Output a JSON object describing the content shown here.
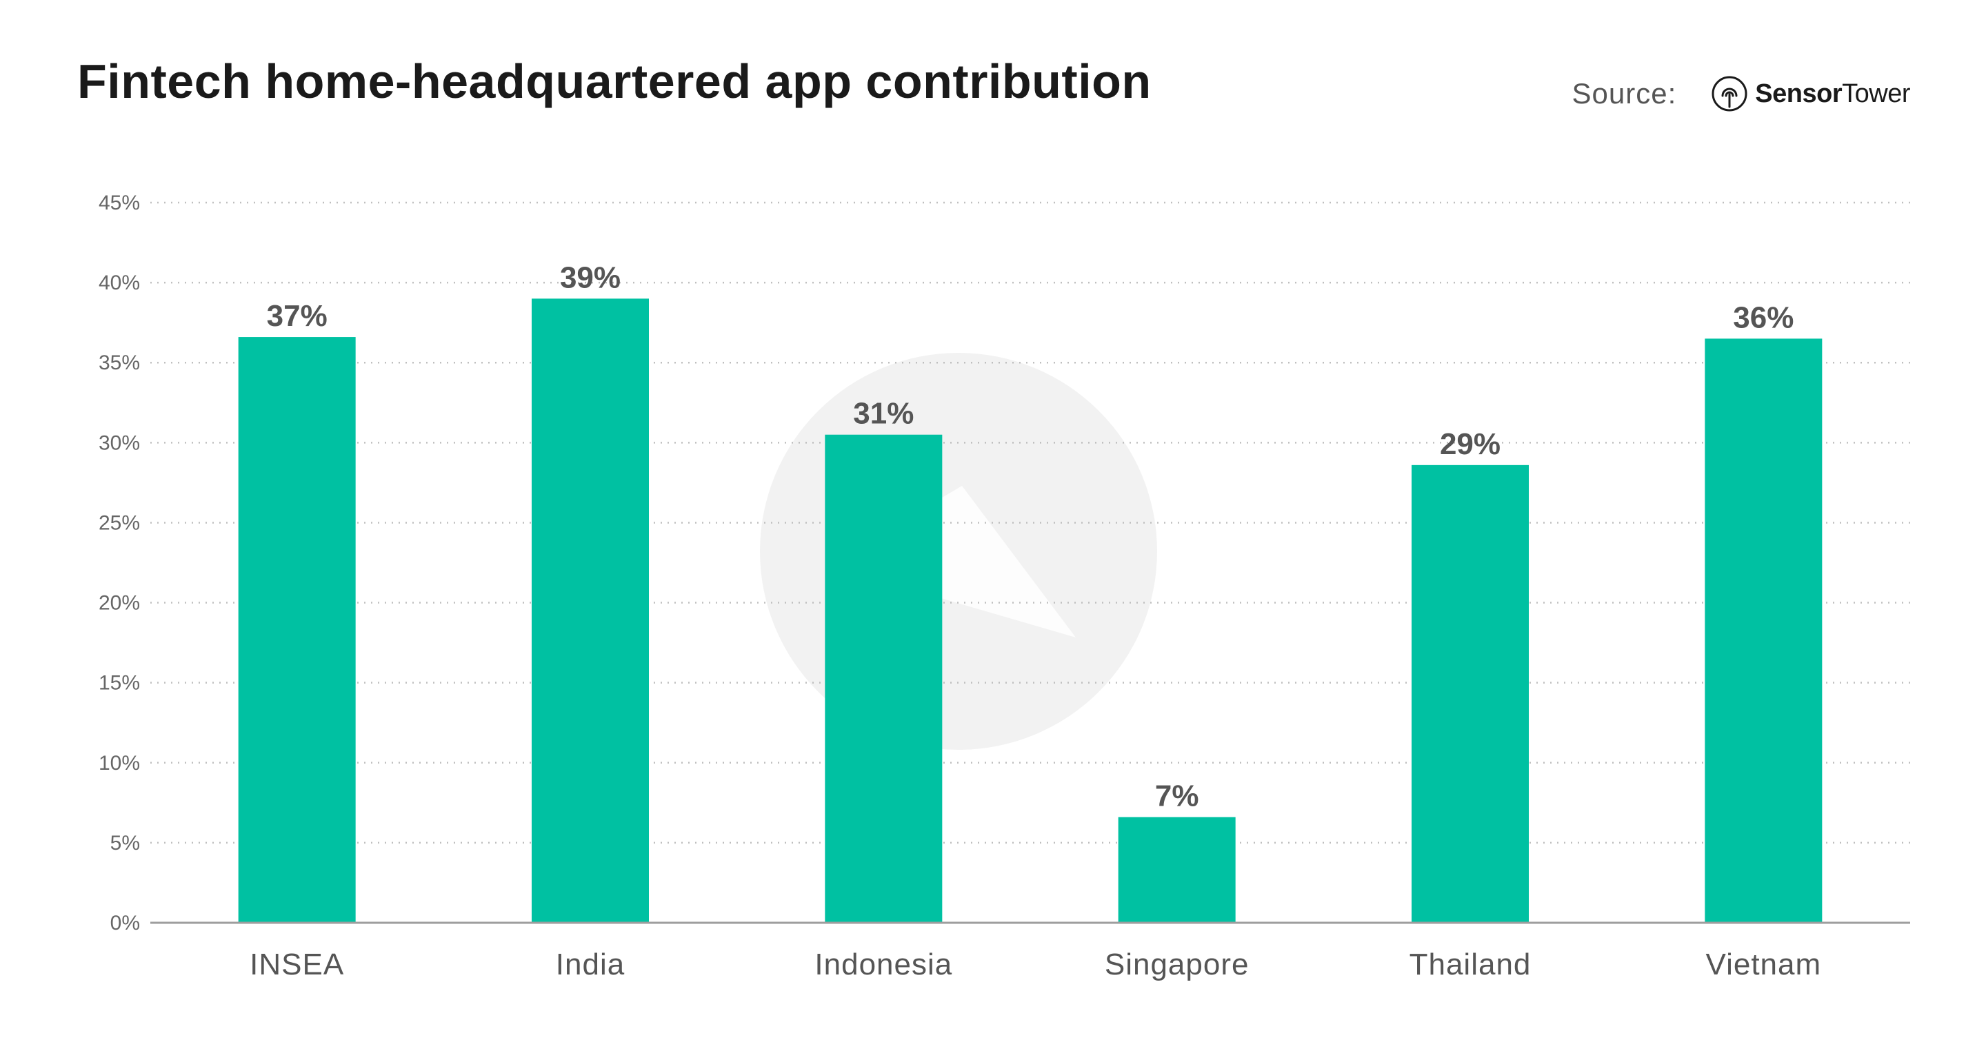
{
  "header": {
    "title": "Fintech home-headquartered app contribution",
    "source_label": "Source:",
    "brand_name_bold": "Sensor",
    "brand_name_regular": "Tower",
    "brand_icon": "sensor-tower-logo-icon"
  },
  "watermark_icon": "sensor-tower-watermark-icon",
  "colors": {
    "bar": "#00c1a2",
    "grid": "#bfbfbf",
    "axis": "#9e9e9e",
    "text": "#555555",
    "title": "#1a1a1a",
    "watermark": "#f2f2f2"
  },
  "chart_data": {
    "type": "bar",
    "title": "Fintech home-headquartered app contribution",
    "xlabel": "",
    "ylabel": "",
    "categories": [
      "INSEA",
      "India",
      "Indonesia",
      "Singapore",
      "Thailand",
      "Vietnam"
    ],
    "values": [
      36.6,
      39.0,
      30.5,
      6.6,
      28.6,
      36.5
    ],
    "value_labels": [
      "37%",
      "39%",
      "31%",
      "7%",
      "29%",
      "36%"
    ],
    "ylim": [
      0,
      45
    ],
    "yticks": [
      0,
      5,
      10,
      15,
      20,
      25,
      30,
      35,
      40,
      45
    ],
    "ytick_labels": [
      "0%",
      "5%",
      "10%",
      "15%",
      "20%",
      "25%",
      "30%",
      "35%",
      "40%",
      "45%"
    ],
    "grid": true,
    "grid_style": "dotted",
    "legend": "none"
  }
}
